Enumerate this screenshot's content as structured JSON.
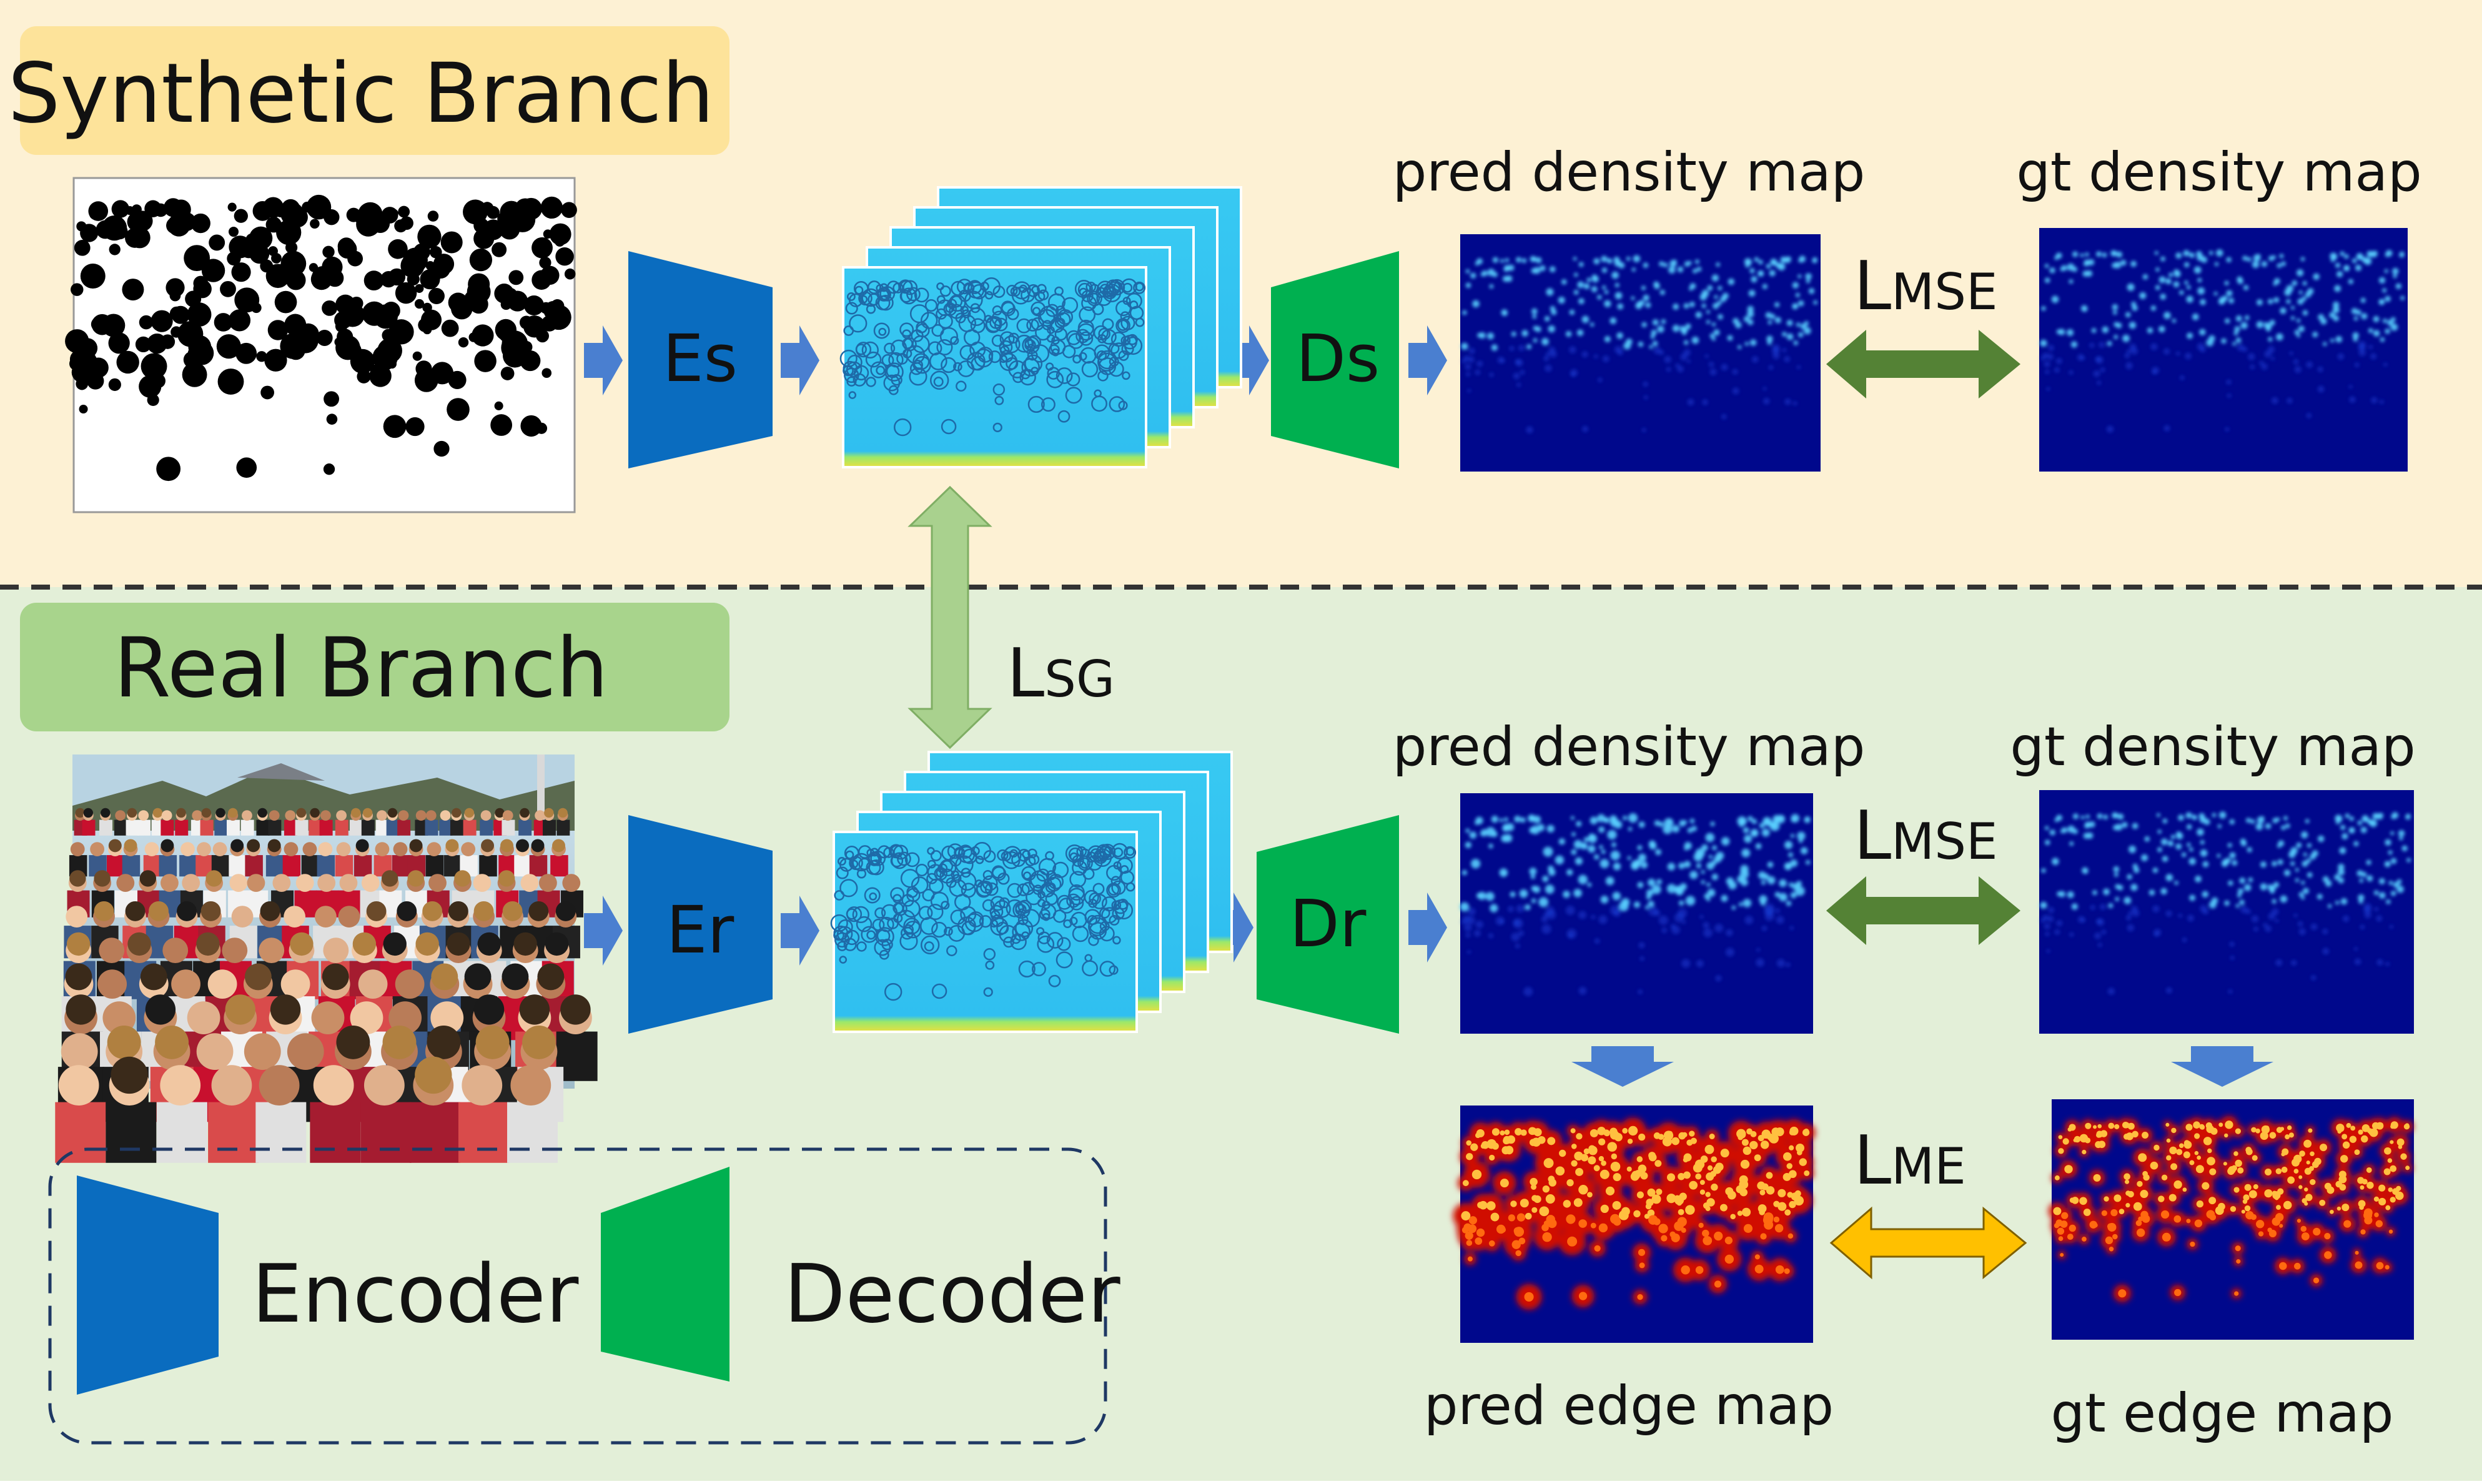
{
  "synthetic_branch": {
    "title": "Synthetic Branch",
    "encoder_label": "Es",
    "decoder_label": "Ds",
    "pred_label": "pred density map",
    "gt_label": "gt density map",
    "loss": {
      "L": "L",
      "sub": "MSE"
    }
  },
  "real_branch": {
    "title": "Real Branch",
    "encoder_label": "Er",
    "decoder_label": "Dr",
    "pred_density_label": "pred density map",
    "gt_density_label": "gt density map",
    "pred_edge_label": "pred edge map",
    "gt_edge_label": "gt edge map",
    "density_loss": {
      "L": "L",
      "sub": "MSE"
    },
    "edge_loss": {
      "L": "L",
      "sub": "ME"
    }
  },
  "shared_loss": {
    "L": "L",
    "sub": "SG"
  },
  "legend": {
    "encoder_label": "Encoder",
    "decoder_label": "Decoder"
  },
  "colors": {
    "synthetic_bg": "#fdf1d4",
    "real_bg": "#e3efd8",
    "synthetic_title_bg": "#fde39a",
    "real_title_bg": "#a8d48c",
    "encoder": "#0a6cbf",
    "decoder": "#00b050",
    "small_arrow": "#4a7fd0",
    "mse_arrow": "#548235",
    "sg_arrow": "#a9d18e",
    "me_arrow": "#ffc000",
    "map_bg": "#00088c",
    "feature_bg": "#33c8f0"
  }
}
